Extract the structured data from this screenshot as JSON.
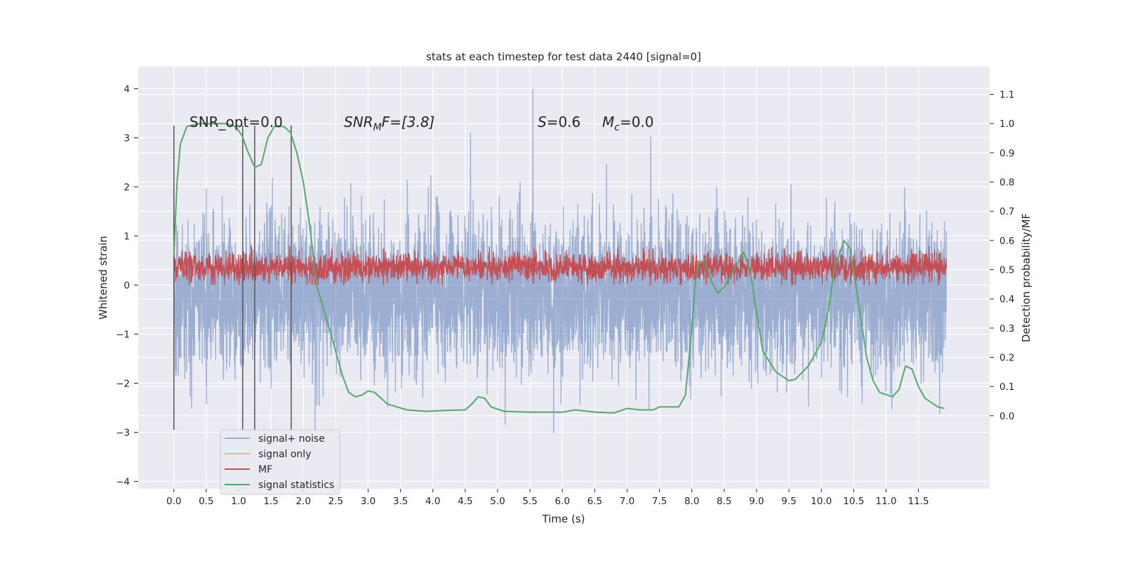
{
  "chart_data": {
    "type": "line",
    "title": "stats at each timestep for test data 2440 [signal=0]",
    "xlabel": "Time (s)",
    "ylabel": "Whitened strain",
    "ylabel_right": "Detection probability/MF",
    "xlim": [
      -0.55,
      12.6
    ],
    "ylim": [
      -4.15,
      4.45
    ],
    "ylim_right": [
      -0.25,
      1.195
    ],
    "x_ticks": [
      "0.0",
      "0.5",
      "1.0",
      "1.5",
      "2.0",
      "2.5",
      "3.0",
      "3.5",
      "4.0",
      "4.5",
      "5.0",
      "5.5",
      "6.0",
      "6.5",
      "7.0",
      "7.5",
      "8.0",
      "8.5",
      "9.0",
      "9.5",
      "10.0",
      "10.5",
      "11.0",
      "11.5"
    ],
    "y_ticks": [
      "4",
      "3",
      "2",
      "1",
      "0",
      "−1",
      "−2",
      "−3",
      "−4"
    ],
    "y_ticks_values": [
      4,
      3,
      2,
      1,
      0,
      -1,
      -2,
      -3,
      -4
    ],
    "y_right_ticks": [
      "0.0",
      "0.1",
      "0.2",
      "0.3",
      "0.4",
      "0.5",
      "0.6",
      "0.7",
      "0.8",
      "0.9",
      "1.0",
      "1.1"
    ],
    "grid": true,
    "legend": {
      "placement": "lower-left",
      "entries": [
        {
          "label": "signal+ noise",
          "color": "#9aacd1"
        },
        {
          "label": "signal only",
          "color": "#e9b29c"
        },
        {
          "label": "MF",
          "color": "#c44e52"
        },
        {
          "label": "signal statistics",
          "color": "#55a868"
        }
      ]
    },
    "annotations": {
      "snr_opt": "SNR_opt=0.0",
      "snr_mf_base": "SNR",
      "snr_mf_sub": "M",
      "snr_mf_rest": "F=[3.8]",
      "s_var": "S",
      "s_val": "=0.6",
      "mc_var": "M",
      "mc_sub": "c",
      "mc_val": "=0.0"
    },
    "vertical_markers_s": [
      0.0,
      1.063,
      1.248,
      1.812
    ],
    "vertical_marker_range": [
      -2.95,
      3.25
    ],
    "series": [
      {
        "name": "signal+ noise",
        "axis": "left",
        "duration_s": 11.93,
        "samples": 5000,
        "mean": -0.2,
        "std": 0.72,
        "min": -3.6,
        "max": 4.1
      },
      {
        "name": "MF",
        "axis": "left",
        "duration_s": 11.93,
        "samples": 3000,
        "mean": 0.36,
        "std": 0.15,
        "min": 0.0,
        "max": 1.0
      },
      {
        "name": "signal statistics",
        "axis": "right",
        "x": [
          0.0,
          0.05,
          0.1,
          0.2,
          0.4,
          0.8,
          0.95,
          1.05,
          1.15,
          1.25,
          1.35,
          1.45,
          1.55,
          1.7,
          1.8,
          1.9,
          2.0,
          2.1,
          2.2,
          2.4,
          2.6,
          2.7,
          2.8,
          2.9,
          3.0,
          3.1,
          3.3,
          3.6,
          3.9,
          4.2,
          4.5,
          4.6,
          4.7,
          4.8,
          4.9,
          5.1,
          5.5,
          6.0,
          6.2,
          6.5,
          6.8,
          7.0,
          7.2,
          7.4,
          7.5,
          7.7,
          7.8,
          7.9,
          8.0,
          8.05,
          8.1,
          8.2,
          8.3,
          8.4,
          8.5,
          8.7,
          8.8,
          8.9,
          9.0,
          9.1,
          9.3,
          9.5,
          9.6,
          9.8,
          10.0,
          10.1,
          10.2,
          10.35,
          10.45,
          10.6,
          10.7,
          10.8,
          10.9,
          11.1,
          11.2,
          11.3,
          11.4,
          11.5,
          11.6,
          11.8,
          11.9
        ],
        "values": [
          0.55,
          0.8,
          0.93,
          0.99,
          1.0,
          1.0,
          0.99,
          0.96,
          0.9,
          0.85,
          0.86,
          0.95,
          0.99,
          0.99,
          0.97,
          0.9,
          0.8,
          0.65,
          0.45,
          0.3,
          0.14,
          0.08,
          0.065,
          0.07,
          0.085,
          0.08,
          0.04,
          0.02,
          0.015,
          0.018,
          0.02,
          0.04,
          0.065,
          0.06,
          0.03,
          0.015,
          0.012,
          0.012,
          0.02,
          0.012,
          0.01,
          0.025,
          0.02,
          0.02,
          0.03,
          0.03,
          0.03,
          0.07,
          0.3,
          0.45,
          0.52,
          0.53,
          0.46,
          0.42,
          0.44,
          0.52,
          0.56,
          0.5,
          0.35,
          0.22,
          0.15,
          0.12,
          0.125,
          0.17,
          0.25,
          0.35,
          0.5,
          0.6,
          0.57,
          0.35,
          0.2,
          0.12,
          0.08,
          0.065,
          0.09,
          0.17,
          0.16,
          0.1,
          0.06,
          0.03,
          0.025
        ]
      }
    ]
  }
}
